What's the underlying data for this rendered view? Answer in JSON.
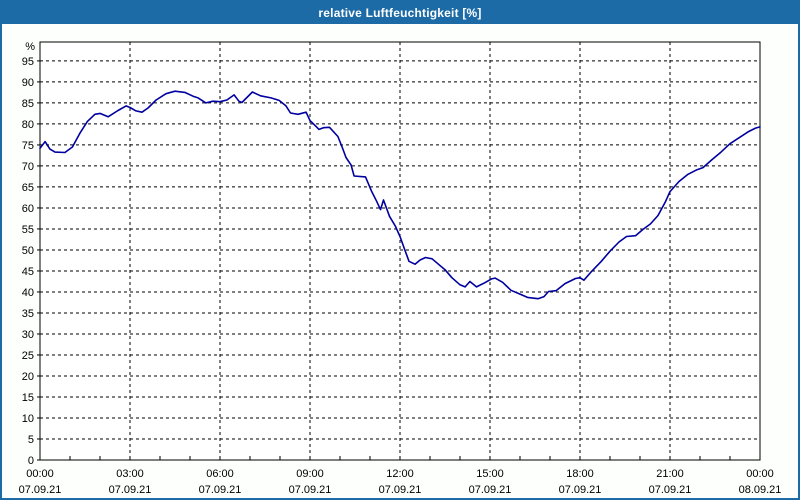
{
  "window": {
    "title": "relative Luftfeuchtigkeit [%]",
    "title_bar_color": "#1c6ba6",
    "border_color": "#1c6ba6",
    "background_color": "#fcfffc"
  },
  "chart_data": {
    "type": "line",
    "title": "relative Luftfeuchtigkeit [%]",
    "ylabel": "%",
    "unit_label": "%",
    "xlim_hours": [
      0,
      24
    ],
    "ylim": [
      0,
      99.5
    ],
    "grid": "dashed",
    "legend": "none",
    "plot_bg_color": "#ffffff",
    "grid_color": "#000000",
    "axis_color": "#000000",
    "line_color": "#0000a0",
    "label_color": "#000000",
    "ytick_values": [
      0,
      5,
      10,
      15,
      20,
      25,
      30,
      35,
      40,
      45,
      50,
      55,
      60,
      65,
      70,
      75,
      80,
      85,
      90,
      95
    ],
    "xticks": [
      {
        "hour": 0,
        "time": "00:00",
        "date": "07.09.21"
      },
      {
        "hour": 3,
        "time": "03:00",
        "date": "07.09.21"
      },
      {
        "hour": 6,
        "time": "06:00",
        "date": "07.09.21"
      },
      {
        "hour": 9,
        "time": "09:00",
        "date": "07.09.21"
      },
      {
        "hour": 12,
        "time": "12:00",
        "date": "07.09.21"
      },
      {
        "hour": 15,
        "time": "15:00",
        "date": "07.09.21"
      },
      {
        "hour": 18,
        "time": "18:00",
        "date": "07.09.21"
      },
      {
        "hour": 21,
        "time": "21:00",
        "date": "07.09.21"
      },
      {
        "hour": 24,
        "time": "00:00",
        "date": "08.09.21"
      }
    ],
    "minor_xtick_every_hours": 1,
    "series": [
      {
        "name": "relative Luftfeuchtigkeit",
        "points": [
          [
            0.0,
            74.2
          ],
          [
            0.17,
            75.8
          ],
          [
            0.33,
            74.0
          ],
          [
            0.5,
            73.3
          ],
          [
            0.83,
            73.2
          ],
          [
            1.08,
            74.5
          ],
          [
            1.33,
            77.8
          ],
          [
            1.58,
            80.6
          ],
          [
            1.83,
            82.3
          ],
          [
            2.0,
            82.5
          ],
          [
            2.27,
            81.7
          ],
          [
            2.6,
            83.2
          ],
          [
            2.87,
            84.3
          ],
          [
            3.0,
            83.9
          ],
          [
            3.2,
            83.1
          ],
          [
            3.4,
            82.8
          ],
          [
            3.6,
            83.8
          ],
          [
            3.87,
            85.7
          ],
          [
            4.2,
            87.2
          ],
          [
            4.5,
            87.8
          ],
          [
            4.83,
            87.5
          ],
          [
            5.1,
            86.6
          ],
          [
            5.27,
            86.2
          ],
          [
            5.53,
            85.0
          ],
          [
            5.77,
            85.4
          ],
          [
            6.0,
            85.3
          ],
          [
            6.23,
            85.7
          ],
          [
            6.47,
            86.9
          ],
          [
            6.63,
            85.4
          ],
          [
            6.73,
            85.1
          ],
          [
            7.08,
            87.6
          ],
          [
            7.35,
            86.7
          ],
          [
            7.7,
            86.2
          ],
          [
            7.97,
            85.6
          ],
          [
            8.2,
            84.3
          ],
          [
            8.35,
            82.6
          ],
          [
            8.6,
            82.3
          ],
          [
            8.87,
            82.8
          ],
          [
            9.0,
            80.8
          ],
          [
            9.13,
            79.9
          ],
          [
            9.3,
            78.7
          ],
          [
            9.45,
            79.1
          ],
          [
            9.65,
            79.2
          ],
          [
            9.93,
            77.0
          ],
          [
            10.07,
            74.5
          ],
          [
            10.2,
            72.0
          ],
          [
            10.37,
            70.2
          ],
          [
            10.47,
            67.6
          ],
          [
            10.85,
            67.4
          ],
          [
            11.05,
            64.0
          ],
          [
            11.22,
            61.6
          ],
          [
            11.35,
            59.6
          ],
          [
            11.45,
            61.9
          ],
          [
            11.65,
            58.0
          ],
          [
            11.85,
            55.6
          ],
          [
            12.0,
            53.2
          ],
          [
            12.13,
            50.6
          ],
          [
            12.3,
            47.3
          ],
          [
            12.5,
            46.6
          ],
          [
            12.67,
            47.6
          ],
          [
            12.85,
            48.2
          ],
          [
            13.07,
            47.9
          ],
          [
            13.3,
            46.5
          ],
          [
            13.5,
            45.3
          ],
          [
            13.73,
            43.4
          ],
          [
            14.0,
            41.7
          ],
          [
            14.17,
            41.2
          ],
          [
            14.33,
            42.5
          ],
          [
            14.55,
            41.2
          ],
          [
            14.83,
            42.2
          ],
          [
            15.05,
            43.1
          ],
          [
            15.17,
            43.3
          ],
          [
            15.42,
            42.3
          ],
          [
            15.7,
            40.4
          ],
          [
            16.0,
            39.5
          ],
          [
            16.25,
            38.7
          ],
          [
            16.6,
            38.4
          ],
          [
            16.8,
            38.9
          ],
          [
            16.95,
            40.1
          ],
          [
            17.2,
            40.3
          ],
          [
            17.5,
            42.0
          ],
          [
            17.85,
            43.2
          ],
          [
            18.0,
            43.4
          ],
          [
            18.13,
            42.8
          ],
          [
            18.35,
            44.6
          ],
          [
            18.7,
            47.2
          ],
          [
            19.0,
            49.7
          ],
          [
            19.3,
            51.9
          ],
          [
            19.55,
            53.2
          ],
          [
            19.85,
            53.4
          ],
          [
            20.1,
            54.9
          ],
          [
            20.35,
            56.2
          ],
          [
            20.6,
            58.2
          ],
          [
            20.85,
            61.5
          ],
          [
            21.0,
            63.9
          ],
          [
            21.3,
            66.3
          ],
          [
            21.6,
            68.0
          ],
          [
            21.9,
            69.1
          ],
          [
            22.1,
            69.6
          ],
          [
            22.4,
            71.5
          ],
          [
            22.7,
            73.3
          ],
          [
            23.0,
            75.3
          ],
          [
            23.3,
            76.7
          ],
          [
            23.6,
            78.1
          ],
          [
            23.85,
            79.0
          ],
          [
            24.0,
            79.3
          ]
        ]
      }
    ]
  }
}
